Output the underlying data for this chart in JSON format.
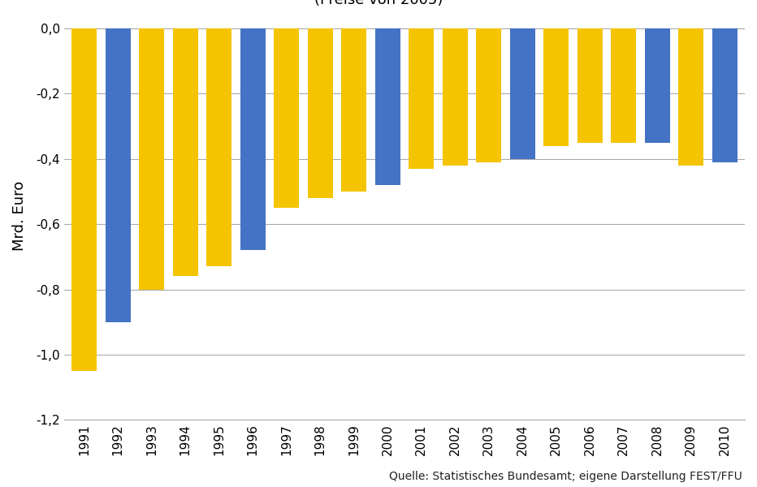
{
  "ylabel": "Mrd. Euro",
  "source": "Quelle: Statistisches Bundesamt; eigene Darstellung FEST/FFU",
  "years": [
    1991,
    1992,
    1993,
    1994,
    1995,
    1996,
    1997,
    1998,
    1999,
    2000,
    2001,
    2002,
    2003,
    2004,
    2005,
    2006,
    2007,
    2008,
    2009,
    2010
  ],
  "values": [
    -1.05,
    -0.9,
    -0.8,
    -0.76,
    -0.73,
    -0.68,
    -0.55,
    -0.52,
    -0.5,
    -0.48,
    -0.43,
    -0.42,
    -0.41,
    -0.4,
    -0.36,
    -0.35,
    -0.35,
    -0.35,
    -0.42,
    -0.41
  ],
  "colors": [
    "#F5C400",
    "#4472C4",
    "#F5C400",
    "#F5C400",
    "#F5C400",
    "#4472C4",
    "#F5C400",
    "#F5C400",
    "#F5C400",
    "#4472C4",
    "#F5C400",
    "#F5C400",
    "#F5C400",
    "#4472C4",
    "#F5C400",
    "#F5C400",
    "#F5C400",
    "#4472C4",
    "#F5C400",
    "#4472C4"
  ],
  "ylim": [
    -1.2,
    0.05
  ],
  "yticks": [
    0.0,
    -0.2,
    -0.4,
    -0.6,
    -0.8,
    -1.0,
    -1.2
  ],
  "background_color": "#FFFFFF",
  "grid_color": "#AAAAAA",
  "title_fontsize": 18,
  "subtitle_fontsize": 13,
  "ylabel_fontsize": 13,
  "tick_fontsize": 11,
  "source_fontsize": 10
}
